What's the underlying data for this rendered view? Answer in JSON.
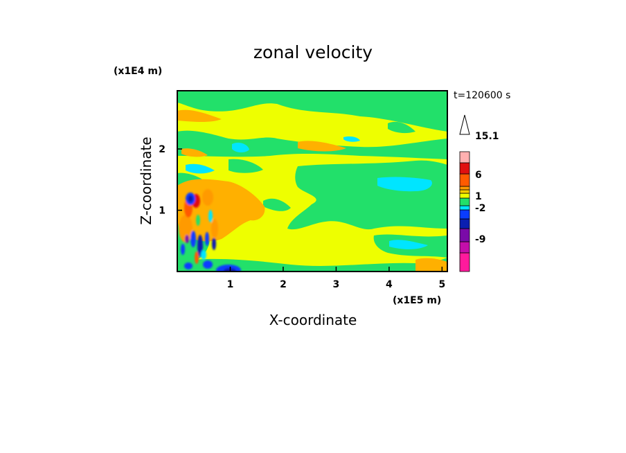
{
  "chart_data": {
    "type": "heatmap",
    "title": "zonal velocity",
    "xlabel": "X-coordinate",
    "ylabel": "Z-coordinate",
    "x_unit": "(x1E5 m)",
    "y_unit": "(x1E4 m)",
    "time_label": "t=120600 s",
    "xlim": [
      0.0,
      5.1
    ],
    "ylim": [
      0.0,
      2.95
    ],
    "x_ticks": [
      "1",
      "2",
      "3",
      "4",
      "5"
    ],
    "y_ticks": [
      "1",
      "2"
    ],
    "colorbar": {
      "tick_labels": [
        "15.1",
        "6",
        "1",
        "-2",
        "-9"
      ],
      "levels": [
        {
          "color": "#ff1a9c",
          "range": "< -12"
        },
        {
          "color": "#c40eaa",
          "range": "-12 to -9"
        },
        {
          "color": "#7a0aa8",
          "range": "-9 to -6"
        },
        {
          "color": "#0a1fb0",
          "range": "-6 to -4"
        },
        {
          "color": "#0a3cff",
          "range": "-4 to -2"
        },
        {
          "color": "#00e5ff",
          "range": "-2 to -1"
        },
        {
          "color": "#22e06a",
          "range": "-1 to 0"
        },
        {
          "color": "#eeff00",
          "range": "0 to 1"
        },
        {
          "color": "#ffcc00",
          "range": "1 to 2"
        },
        {
          "color": "#ff9a00",
          "range": "2 to 4"
        },
        {
          "color": "#ff5a00",
          "range": "4 to 6"
        },
        {
          "color": "#e01010",
          "range": "6 to 10"
        },
        {
          "color": "#ffb0b0",
          "range": "10 to 15.1"
        }
      ]
    },
    "features": [
      {
        "level": "green",
        "x_range": [
          0.0,
          5.1
        ],
        "z_range": [
          2.1,
          2.7
        ]
      },
      {
        "level": "green",
        "x_range": [
          2.0,
          5.1
        ],
        "z_range": [
          0.6,
          1.6
        ]
      },
      {
        "level": "green",
        "x_range": [
          0.0,
          5.1
        ],
        "z_range": [
          0.0,
          0.3
        ]
      },
      {
        "level": "orange",
        "x_range": [
          0.0,
          1.4
        ],
        "z_range": [
          0.6,
          1.3
        ]
      },
      {
        "level": "blue",
        "x_range": [
          0.15,
          0.55
        ],
        "z_range": [
          0.0,
          1.3
        ]
      }
    ]
  }
}
